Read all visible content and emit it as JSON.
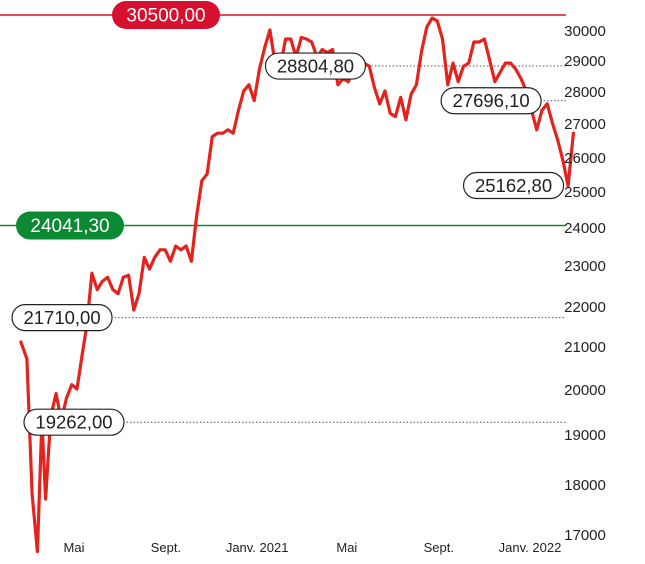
{
  "chart_data": {
    "type": "line",
    "colors": {
      "line": "#e3231d",
      "max_level": "#d6102e",
      "min_level": "#0c8a33",
      "grid": "#555555",
      "text": "#222222"
    },
    "yticks": [
      17000,
      18000,
      19000,
      20000,
      21000,
      22000,
      23000,
      24000,
      25000,
      26000,
      27000,
      28000,
      29000,
      30000
    ],
    "ytick_labels": [
      "17000",
      "18000",
      "19000",
      "20000",
      "21000",
      "22000",
      "23000",
      "24000",
      "25000",
      "26000",
      "27000",
      "28000",
      "29000",
      "30000"
    ],
    "xticks": [
      {
        "label": "Mai",
        "date": "2020-05-01"
      },
      {
        "label": "Sept.",
        "date": "2020-09-01"
      },
      {
        "label": "Janv. 2021",
        "date": "2021-01-01"
      },
      {
        "label": "Mai",
        "date": "2021-05-01"
      },
      {
        "label": "Sept.",
        "date": "2021-09-01"
      },
      {
        "label": "Janv. 2022",
        "date": "2022-01-01"
      }
    ],
    "reference_lines": [
      {
        "value": 30500,
        "label": "30500,00",
        "style": "filled",
        "color": "#d6102e",
        "label_position": "left"
      },
      {
        "value": 24041.3,
        "label": "24041,30",
        "style": "filled",
        "color": "#0c8a33",
        "label_position": "left"
      }
    ],
    "annotations": [
      {
        "value": 28804.8,
        "label": "28804,80",
        "label_date": "2021-03-20"
      },
      {
        "value": 27696.1,
        "label": "27696,10",
        "label_date": "2021-11-10"
      },
      {
        "value": 25162.8,
        "label": "25162,80",
        "label_date": "2021-12-10"
      },
      {
        "value": 21710.0,
        "label": "21710,00",
        "label_date": "2020-04-15"
      },
      {
        "value": 19262.0,
        "label": "19262,00",
        "label_date": "2020-05-01"
      }
    ],
    "series": [
      {
        "points": [
          [
            "2020-02-20",
            21100
          ],
          [
            "2020-02-28",
            20700
          ],
          [
            "2020-03-06",
            17800
          ],
          [
            "2020-03-13",
            16650
          ],
          [
            "2020-03-19",
            19300
          ],
          [
            "2020-03-24",
            17700
          ],
          [
            "2020-03-31",
            19400
          ],
          [
            "2020-04-07",
            19900
          ],
          [
            "2020-04-14",
            19300
          ],
          [
            "2020-04-21",
            19800
          ],
          [
            "2020-04-28",
            20100
          ],
          [
            "2020-05-05",
            20000
          ],
          [
            "2020-05-12",
            20800
          ],
          [
            "2020-05-18",
            21500
          ],
          [
            "2020-05-25",
            22800
          ],
          [
            "2020-06-01",
            22400
          ],
          [
            "2020-06-08",
            22600
          ],
          [
            "2020-06-15",
            22700
          ],
          [
            "2020-06-22",
            22400
          ],
          [
            "2020-06-29",
            22300
          ],
          [
            "2020-07-06",
            22700
          ],
          [
            "2020-07-13",
            22750
          ],
          [
            "2020-07-20",
            21900
          ],
          [
            "2020-07-27",
            22300
          ],
          [
            "2020-08-03",
            23200
          ],
          [
            "2020-08-10",
            22900
          ],
          [
            "2020-08-17",
            23200
          ],
          [
            "2020-08-24",
            23400
          ],
          [
            "2020-08-31",
            23400
          ],
          [
            "2020-09-07",
            23100
          ],
          [
            "2020-09-14",
            23500
          ],
          [
            "2020-09-21",
            23400
          ],
          [
            "2020-09-28",
            23500
          ],
          [
            "2020-10-05",
            23100
          ],
          [
            "2020-10-12",
            24300
          ],
          [
            "2020-10-19",
            25300
          ],
          [
            "2020-10-26",
            25500
          ],
          [
            "2020-11-02",
            26600
          ],
          [
            "2020-11-09",
            26700
          ],
          [
            "2020-11-16",
            26700
          ],
          [
            "2020-11-23",
            26800
          ],
          [
            "2020-11-30",
            26700
          ],
          [
            "2020-12-07",
            27400
          ],
          [
            "2020-12-14",
            28000
          ],
          [
            "2020-12-21",
            28200
          ],
          [
            "2020-12-28",
            27700
          ],
          [
            "2021-01-04",
            28700
          ],
          [
            "2021-01-11",
            29400
          ],
          [
            "2021-01-18",
            30000
          ],
          [
            "2021-01-25",
            28900
          ],
          [
            "2021-02-01",
            28800
          ],
          [
            "2021-02-08",
            29700
          ],
          [
            "2021-02-15",
            29700
          ],
          [
            "2021-02-22",
            29100
          ],
          [
            "2021-03-01",
            29750
          ],
          [
            "2021-03-08",
            29700
          ],
          [
            "2021-03-15",
            29600
          ],
          [
            "2021-03-22",
            29100
          ],
          [
            "2021-03-29",
            29350
          ],
          [
            "2021-04-05",
            29250
          ],
          [
            "2021-04-12",
            29350
          ],
          [
            "2021-04-19",
            28200
          ],
          [
            "2021-04-26",
            28400
          ],
          [
            "2021-05-03",
            28300
          ],
          [
            "2021-05-10",
            28700
          ],
          [
            "2021-05-17",
            28600
          ],
          [
            "2021-05-24",
            28900
          ],
          [
            "2021-05-31",
            28800
          ],
          [
            "2021-06-07",
            28100
          ],
          [
            "2021-06-14",
            27600
          ],
          [
            "2021-06-21",
            28000
          ],
          [
            "2021-06-28",
            27300
          ],
          [
            "2021-07-05",
            27200
          ],
          [
            "2021-07-12",
            27800
          ],
          [
            "2021-07-19",
            27100
          ],
          [
            "2021-07-26",
            27900
          ],
          [
            "2021-08-02",
            28200
          ],
          [
            "2021-08-09",
            29300
          ],
          [
            "2021-08-16",
            30100
          ],
          [
            "2021-08-23",
            30400
          ],
          [
            "2021-08-30",
            30300
          ],
          [
            "2021-09-06",
            29700
          ],
          [
            "2021-09-13",
            28200
          ],
          [
            "2021-09-20",
            28900
          ],
          [
            "2021-09-27",
            28300
          ],
          [
            "2021-10-04",
            28800
          ],
          [
            "2021-10-11",
            28900
          ],
          [
            "2021-10-18",
            29600
          ],
          [
            "2021-10-25",
            29600
          ],
          [
            "2021-11-01",
            29700
          ],
          [
            "2021-11-08",
            29000
          ],
          [
            "2021-11-15",
            28300
          ],
          [
            "2021-11-22",
            28600
          ],
          [
            "2021-11-29",
            28900
          ],
          [
            "2021-12-06",
            28900
          ],
          [
            "2021-12-13",
            28700
          ],
          [
            "2021-12-20",
            28400
          ],
          [
            "2021-12-27",
            28000
          ],
          [
            "2022-01-03",
            27400
          ],
          [
            "2022-01-10",
            26800
          ],
          [
            "2022-01-17",
            27400
          ],
          [
            "2022-01-24",
            27600
          ],
          [
            "2022-01-31",
            27000
          ],
          [
            "2022-02-07",
            26500
          ],
          [
            "2022-02-14",
            25900
          ],
          [
            "2022-02-21",
            25150
          ],
          [
            "2022-02-28",
            26700
          ]
        ]
      }
    ]
  }
}
